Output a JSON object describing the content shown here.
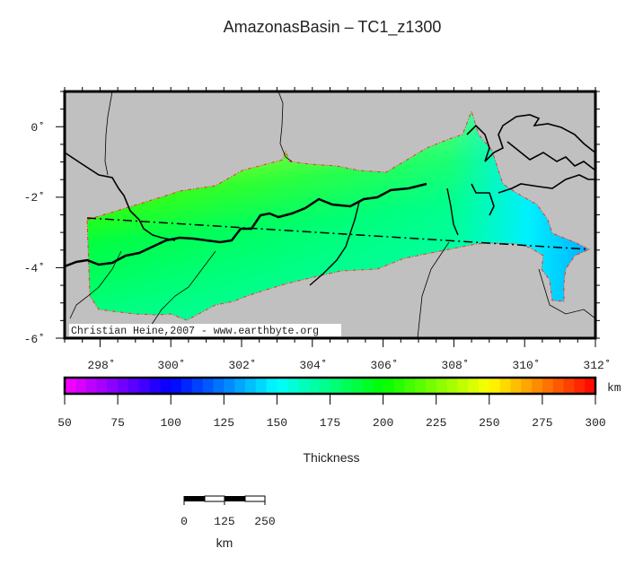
{
  "title": "AmazonasBasin – TC1_z1300",
  "map": {
    "lon_labels": [
      "298˚",
      "300˚",
      "302˚",
      "304˚",
      "306˚",
      "308˚",
      "310˚",
      "312˚"
    ],
    "lat_labels": [
      "0˚",
      "-2˚",
      "-4˚",
      "-6˚"
    ],
    "lon_range": [
      297,
      312
    ],
    "lat_range": [
      -6,
      1
    ],
    "land_color": "#c0c0c0",
    "credit": "Christian Heine,2007 - www.earthbyte.org"
  },
  "colorbar": {
    "ticks": [
      "50",
      "75",
      "100",
      "125",
      "150",
      "175",
      "200",
      "225",
      "250",
      "275",
      "300"
    ],
    "range": [
      50,
      300
    ],
    "step": 5,
    "unit": "km",
    "label": "Thickness",
    "stops": [
      "#ff00ff",
      "#0000ff",
      "#00ffff",
      "#00ff00",
      "#ffff00",
      "#ff0000"
    ]
  },
  "scalebar": {
    "labels": [
      "0",
      "125",
      "250"
    ],
    "unit": "km"
  }
}
